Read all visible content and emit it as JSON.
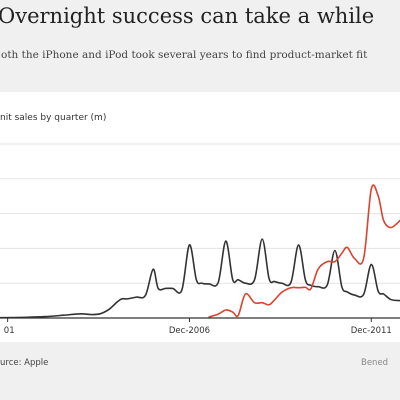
{
  "header": {
    "title": "Overnight success can take a while",
    "subtitle": "oth the iPhone and iPod took several years to find product-market fit"
  },
  "footer": {
    "source": "urce: Apple",
    "credit": "Bened"
  },
  "chart_data": {
    "type": "line",
    "ylabel": "nit sales by quarter (m)",
    "x_tick_labels": [
      "01",
      "Dec-2006",
      "Dec-2011"
    ],
    "x_tick_positions": [
      2001.96,
      2006.96,
      2011.96
    ],
    "xlim": [
      2001.75,
      2012.75
    ],
    "ylim": [
      0,
      50
    ],
    "y_gridlines": [
      0,
      10,
      20,
      30,
      40,
      50
    ],
    "colors": {
      "ipod": "#333333",
      "iphone": "#d9432f",
      "grid": "#e3e3e3",
      "axis": "#333333"
    },
    "series": [
      {
        "key": "ipod",
        "x": [
          2001.75,
          2002.5,
          2003.0,
          2003.5,
          2003.96,
          2004.25,
          2004.5,
          2004.75,
          2004.96,
          2005.1,
          2005.25,
          2005.5,
          2005.75,
          2005.96,
          2006.1,
          2006.3,
          2006.5,
          2006.75,
          2006.96,
          2007.15,
          2007.3,
          2007.5,
          2007.75,
          2007.96,
          2008.15,
          2008.3,
          2008.5,
          2008.75,
          2008.96,
          2009.15,
          2009.3,
          2009.5,
          2009.75,
          2009.96,
          2010.15,
          2010.3,
          2010.5,
          2010.75,
          2010.96,
          2011.15,
          2011.3,
          2011.5,
          2011.75,
          2011.96,
          2012.15,
          2012.3,
          2012.5,
          2012.75
        ],
        "values": [
          0.1,
          0.2,
          0.4,
          0.8,
          1.2,
          1.0,
          1.2,
          2.5,
          4.5,
          5.5,
          5.5,
          6.0,
          6.5,
          14.0,
          8.5,
          8.5,
          8.5,
          8.0,
          21.0,
          11.0,
          10.0,
          9.8,
          10.2,
          22.1,
          11.0,
          11.0,
          10.0,
          11.0,
          22.7,
          11.3,
          10.5,
          10.0,
          10.2,
          21.0,
          10.9,
          9.4,
          9.0,
          9.5,
          19.4,
          9.0,
          7.5,
          6.6,
          6.8,
          15.4,
          7.7,
          6.9,
          5.3,
          5.0
        ]
      },
      {
        "key": "iphone",
        "x": [
          2007.5,
          2007.75,
          2007.96,
          2008.15,
          2008.3,
          2008.5,
          2008.75,
          2008.96,
          2009.15,
          2009.3,
          2009.5,
          2009.75,
          2009.96,
          2010.15,
          2010.3,
          2010.5,
          2010.75,
          2010.96,
          2011.15,
          2011.3,
          2011.5,
          2011.75,
          2011.96,
          2012.15,
          2012.3,
          2012.5,
          2012.75
        ],
        "values": [
          0.3,
          1.1,
          2.3,
          1.7,
          0.7,
          6.9,
          4.4,
          4.4,
          3.8,
          5.2,
          7.4,
          8.7,
          8.7,
          8.8,
          8.4,
          14.1,
          16.2,
          16.2,
          18.6,
          20.3,
          17.1,
          17.1,
          37.0,
          35.1,
          28.0,
          26.0,
          28.0
        ]
      }
    ]
  }
}
